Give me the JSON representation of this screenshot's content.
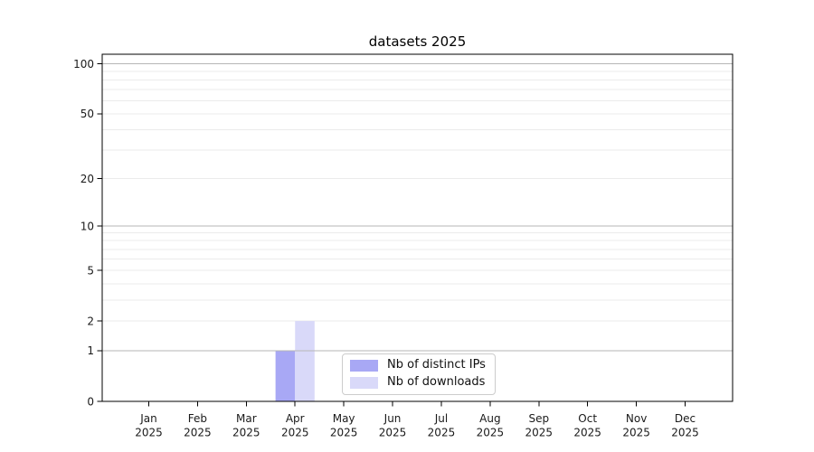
{
  "chart_data": {
    "type": "bar",
    "title": "datasets 2025",
    "categories": [
      "Jan",
      "Feb",
      "Mar",
      "Apr",
      "May",
      "Jun",
      "Jul",
      "Aug",
      "Sep",
      "Oct",
      "Nov",
      "Dec"
    ],
    "year_label": "2025",
    "series": [
      {
        "name": "Nb of distinct IPs",
        "color": "#a8a8f5",
        "values": [
          0,
          0,
          0,
          1,
          0,
          0,
          0,
          0,
          0,
          0,
          0,
          0
        ]
      },
      {
        "name": "Nb of downloads",
        "color": "#d9d9f9",
        "values": [
          0,
          0,
          0,
          2,
          0,
          0,
          0,
          0,
          0,
          0,
          0,
          0
        ]
      }
    ],
    "xlabel": "",
    "ylabel": "",
    "yaxis": {
      "scale": "log1p",
      "major_ticks": [
        0,
        1,
        2,
        5,
        10,
        20,
        50,
        100
      ],
      "decade_gridlines": [
        1,
        10,
        100
      ],
      "minor_gridlines": [
        2,
        3,
        4,
        5,
        6,
        7,
        8,
        9,
        20,
        30,
        40,
        50,
        60,
        70,
        80,
        90
      ],
      "max": 113
    },
    "legend": {
      "position": "lower center"
    },
    "grid": {
      "decade_color": "#b6b6b6",
      "minor_color": "#ebebeb"
    },
    "colors": {
      "axis": "#000000",
      "text": "#1a1a1a",
      "background": "#ffffff"
    }
  }
}
